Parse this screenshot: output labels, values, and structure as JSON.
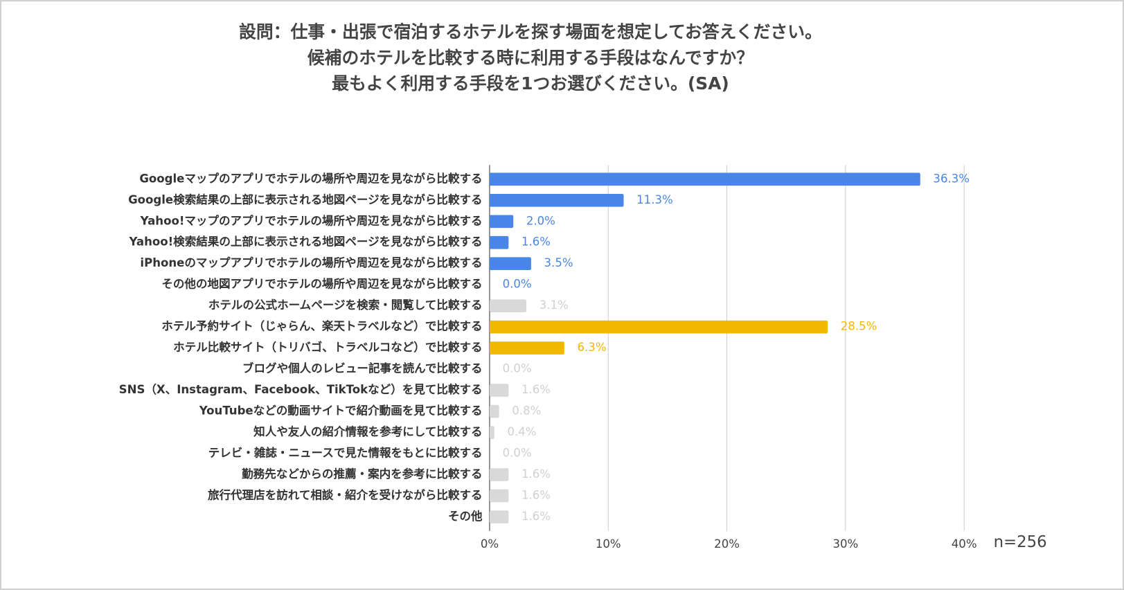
{
  "chart_data": {
    "type": "barh",
    "title": [
      "設問：仕事・出張で宿泊するホテルを探す場面を想定してお答えください。",
      "候補のホテルを比較する時に利用する手段はなんですか？",
      "最もよく利用する手段を1つお選びください。(SA)"
    ],
    "categories": [
      "Googleマップのアプリでホテルの場所や周辺を見ながら比較する",
      "Google検索結果の上部に表示される地図ページを見ながら比較する",
      "Yahoo!マップのアプリでホテルの場所や周辺を見ながら比較する",
      "Yahoo!検索結果の上部に表示される地図ページを見ながら比較する",
      "iPhoneのマップアプリでホテルの場所や周辺を見ながら比較する",
      "その他の地図アプリでホテルの場所や周辺を見ながら比較する",
      "ホテルの公式ホームページを検索・閲覧して比較する",
      "ホテル予約サイト（じゃらん、楽天トラベルなど）で比較する",
      "ホテル比較サイト（トリバゴ、トラベルコなど）で比較する",
      "ブログや個人のレビュー記事を読んで比較する",
      "SNS（X、Instagram、Facebook、TikTokなど）を見て比較する",
      "YouTubeなどの動画サイトで紹介動画を見て比較する",
      "知人や友人の紹介情報を参考にして比較する",
      "テレビ・雑誌・ニュースで見た情報をもとに比較する",
      "勤務先などからの推薦・案内を参考に比較する",
      "旅行代理店を訪れて相談・紹介を受けながら比較する",
      "その他"
    ],
    "values": [
      36.3,
      11.3,
      2.0,
      1.6,
      3.5,
      0.0,
      3.1,
      28.5,
      6.3,
      0.0,
      1.6,
      0.8,
      0.4,
      0.0,
      1.6,
      1.6,
      1.6
    ],
    "value_labels": [
      "36.3%",
      "11.3%",
      "2.0%",
      "1.6%",
      "3.5%",
      "0.0%",
      "3.1%",
      "28.5%",
      "6.3%",
      "0.0%",
      "1.6%",
      "0.8%",
      "0.4%",
      "0.0%",
      "1.6%",
      "1.6%",
      "1.6%"
    ],
    "colors": [
      "#4a86e8",
      "#4a86e8",
      "#4a86e8",
      "#4a86e8",
      "#4a86e8",
      "#4a86e8",
      "#d9d9d9",
      "#f1b800",
      "#f1b800",
      "#d9d9d9",
      "#d9d9d9",
      "#d9d9d9",
      "#d9d9d9",
      "#d9d9d9",
      "#d9d9d9",
      "#d9d9d9",
      "#d9d9d9"
    ],
    "xlim": [
      0,
      40
    ],
    "xticks": [
      {
        "value": 0,
        "label": "0%"
      },
      {
        "value": 10,
        "label": "10%"
      },
      {
        "value": 20,
        "label": "20%"
      },
      {
        "value": 30,
        "label": "30%"
      },
      {
        "value": 40,
        "label": "40%"
      }
    ],
    "grid": true,
    "annotation": "n=256"
  }
}
